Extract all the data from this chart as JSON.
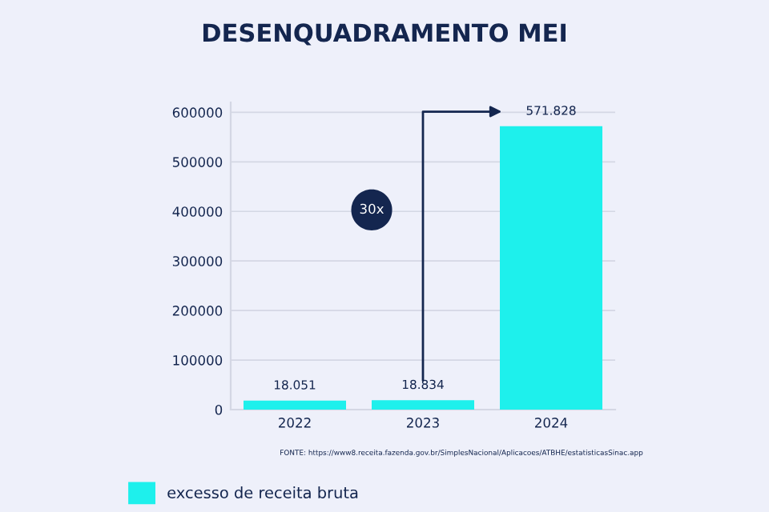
{
  "chart_data": {
    "type": "bar",
    "title": "DESENQUADRAMENTO MEI",
    "categories": [
      "2022",
      "2023",
      "2024"
    ],
    "series": [
      {
        "name": "excesso de receita bruta",
        "color": "#1ef0ec",
        "values": [
          18051,
          18834,
          571828
        ]
      }
    ],
    "value_labels": [
      "18.051",
      "18.834",
      "571.828"
    ],
    "ylim": [
      0,
      620000
    ],
    "yticks": [
      0,
      100000,
      200000,
      300000,
      400000,
      500000,
      600000
    ],
    "grid": "y",
    "legend": "bottom left",
    "annotations": [
      "30x",
      "FONTE: https://www8.receita.fazenda.gov.br/SimplesNacional/Aplicacoes/ATBHE/estatisticasSinac.app"
    ]
  }
}
